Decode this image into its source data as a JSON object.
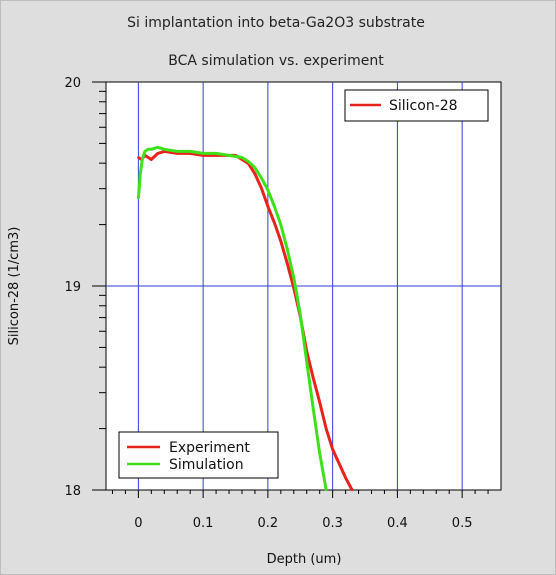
{
  "chart_data": {
    "type": "line",
    "title": "Si implantation into beta-Ga2O3 substrate",
    "subtitle": "BCA simulation vs. experiment",
    "xlabel": "Depth (um)",
    "ylabel": "Silicon-28 (1/cm3)",
    "xlim": [
      -0.05,
      0.56
    ],
    "ylim": [
      18,
      20
    ],
    "yscale": "log-exponent",
    "xticks": [
      "0",
      "0.1",
      "0.2",
      "0.3",
      "0.4",
      "0.5"
    ],
    "yticks": [
      "18",
      "19",
      "20"
    ],
    "grid": true,
    "legends": [
      {
        "placement": "top-right",
        "entries": [
          "Silicon-28"
        ]
      },
      {
        "placement": "bottom-left",
        "entries": [
          "Experiment",
          "Simulation"
        ]
      }
    ],
    "series": [
      {
        "name": "Experiment",
        "color": "#e8231c",
        "x": [
          0.0,
          0.005,
          0.01,
          0.02,
          0.03,
          0.04,
          0.06,
          0.08,
          0.1,
          0.12,
          0.14,
          0.15,
          0.16,
          0.17,
          0.18,
          0.19,
          0.2,
          0.21,
          0.22,
          0.23,
          0.24,
          0.25,
          0.26,
          0.27,
          0.28,
          0.29,
          0.3,
          0.31,
          0.32,
          0.33
        ],
        "values": [
          19.63,
          19.62,
          19.64,
          19.62,
          19.65,
          19.66,
          19.65,
          19.65,
          19.64,
          19.64,
          19.64,
          19.64,
          19.62,
          19.6,
          19.55,
          19.48,
          19.39,
          19.31,
          19.22,
          19.11,
          18.99,
          18.85,
          18.68,
          18.55,
          18.43,
          18.3,
          18.2,
          18.13,
          18.06,
          18.0
        ]
      },
      {
        "name": "Simulation",
        "color": "#3fe01a",
        "x": [
          0.0,
          0.003,
          0.006,
          0.01,
          0.015,
          0.02,
          0.03,
          0.04,
          0.06,
          0.08,
          0.1,
          0.12,
          0.14,
          0.16,
          0.17,
          0.18,
          0.19,
          0.2,
          0.21,
          0.22,
          0.23,
          0.24,
          0.25,
          0.26,
          0.27,
          0.28,
          0.29
        ],
        "values": [
          19.43,
          19.55,
          19.62,
          19.66,
          19.67,
          19.67,
          19.68,
          19.67,
          19.66,
          19.66,
          19.65,
          19.65,
          19.64,
          19.63,
          19.61,
          19.58,
          19.53,
          19.47,
          19.39,
          19.3,
          19.18,
          19.04,
          18.86,
          18.63,
          18.4,
          18.18,
          18.0
        ]
      }
    ]
  }
}
